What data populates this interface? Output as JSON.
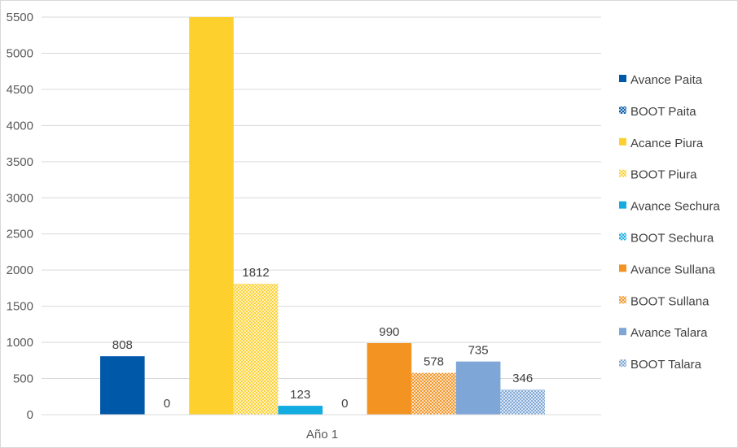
{
  "chart_data": {
    "type": "bar",
    "categories": [
      "Año 1"
    ],
    "ylim": [
      0,
      5500
    ],
    "yticks": [
      0,
      500,
      1000,
      1500,
      2000,
      2500,
      3000,
      3500,
      4000,
      4500,
      5000,
      5500
    ],
    "grid": true,
    "legend_position": "right",
    "series": [
      {
        "name": "Avance Paita",
        "values": [
          808
        ],
        "label": "808",
        "color": "#0058a8",
        "pattern": "solid"
      },
      {
        "name": "BOOT Paita",
        "values": [
          0
        ],
        "label": "0",
        "color": "#0058a8",
        "pattern": "hatch"
      },
      {
        "name": "Acance Piura",
        "values": [
          5500
        ],
        "label": "",
        "color": "#fdd02e",
        "pattern": "solid"
      },
      {
        "name": "BOOT Piura",
        "values": [
          1812
        ],
        "label": "1812",
        "color": "#fdd02e",
        "pattern": "hatch"
      },
      {
        "name": "Avance Sechura",
        "values": [
          123
        ],
        "label": "123",
        "color": "#13ace0",
        "pattern": "solid"
      },
      {
        "name": "BOOT Sechura",
        "values": [
          0
        ],
        "label": "0",
        "color": "#13ace0",
        "pattern": "hatch"
      },
      {
        "name": "Avance Sullana",
        "values": [
          990
        ],
        "label": "990",
        "color": "#f39322",
        "pattern": "solid"
      },
      {
        "name": "BOOT Sullana",
        "values": [
          578
        ],
        "label": "578",
        "color": "#f39322",
        "pattern": "hatch"
      },
      {
        "name": "Avance Talara",
        "values": [
          735
        ],
        "label": "735",
        "color": "#7ea6d6",
        "pattern": "solid"
      },
      {
        "name": "BOOT Talara",
        "values": [
          346
        ],
        "label": "346",
        "color": "#7ea6d6",
        "pattern": "hatch"
      }
    ]
  }
}
